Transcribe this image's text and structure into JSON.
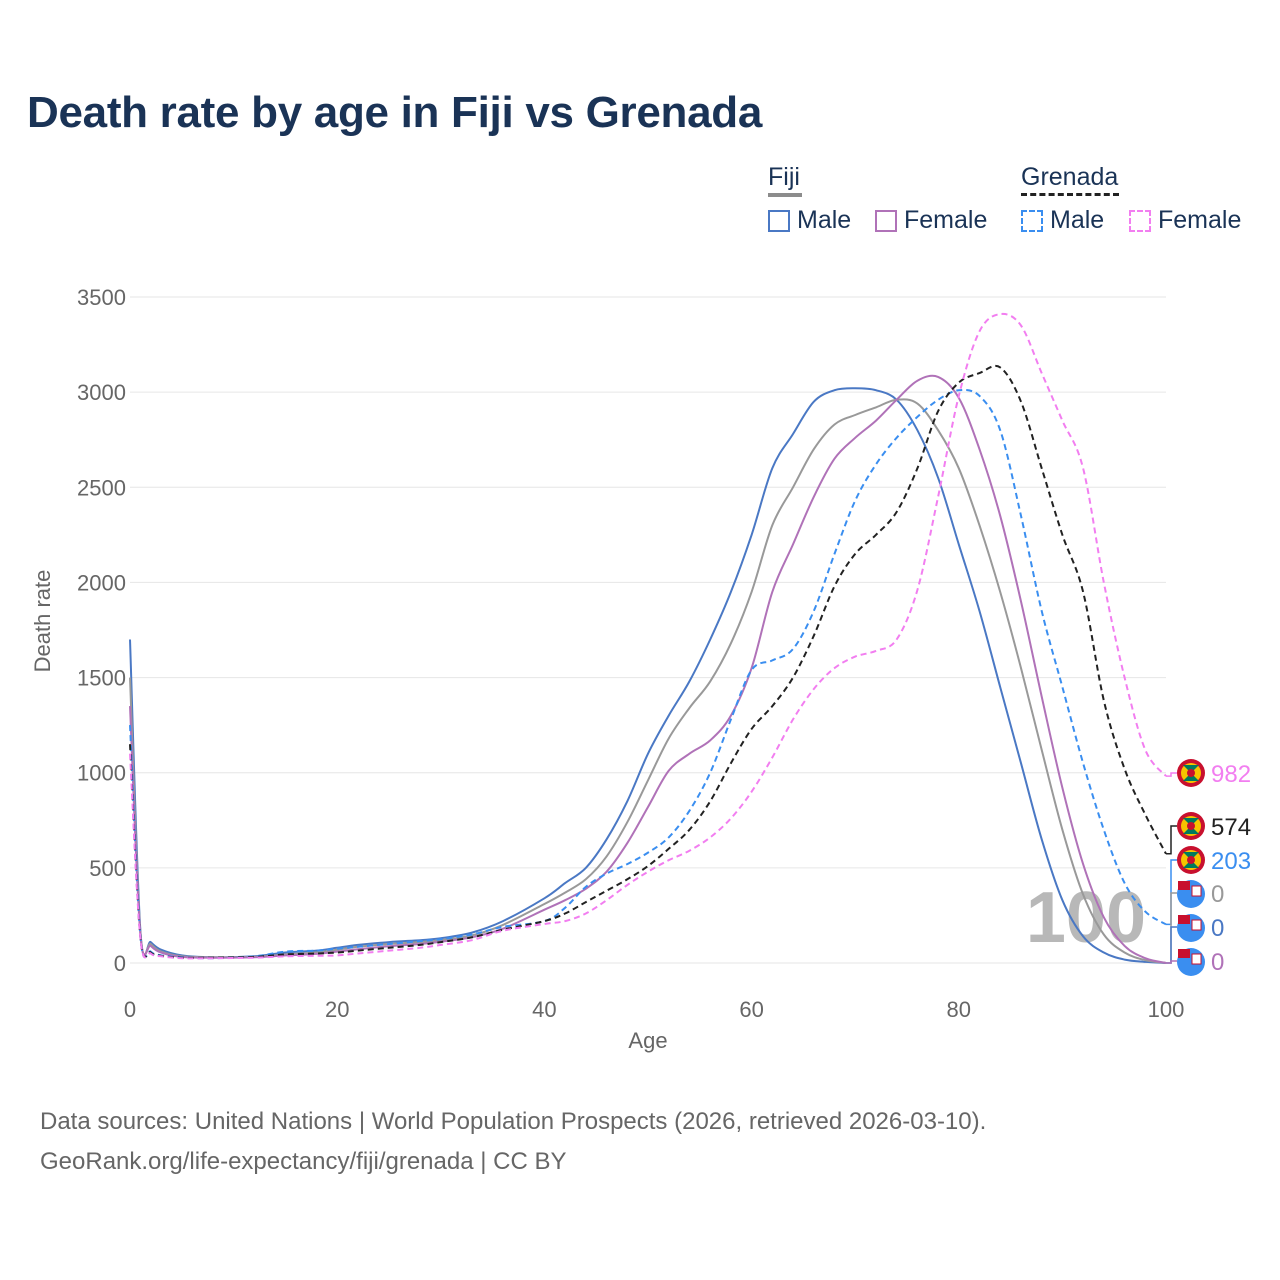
{
  "title": "Death rate by age in Fiji vs Grenada",
  "legend": {
    "groups": [
      {
        "name": "Fiji",
        "line_color": "#8c8c8c",
        "line_style": "solid"
      },
      {
        "name": "Grenada",
        "line_color": "#222222",
        "line_style": "dashed"
      }
    ],
    "items": [
      {
        "label": "Male",
        "color": "#4a78c4",
        "style": "solid"
      },
      {
        "label": "Female",
        "color": "#b072b8",
        "style": "solid"
      },
      {
        "label": "Male",
        "color": "#3a8ef0",
        "style": "dashed"
      },
      {
        "label": "Female",
        "color": "#f27ef0",
        "style": "dashed"
      }
    ]
  },
  "watermark": "100",
  "source": {
    "line1": "Data sources: United Nations | World Population Prospects (2026, retrieved 2026-03-10).",
    "line2": "GeoRank.org/life-expectancy/fiji/grenada | CC BY"
  },
  "chart_data": {
    "type": "line",
    "xlabel": "Age",
    "ylabel": "Death rate",
    "xlim": [
      0,
      100
    ],
    "ylim": [
      0,
      3500
    ],
    "xticks": [
      0,
      20,
      40,
      60,
      80,
      100
    ],
    "yticks": [
      0,
      500,
      1000,
      1500,
      2000,
      2500,
      3000,
      3500
    ],
    "grid": true,
    "series": [
      {
        "name": "Fiji Male",
        "color": "#4a78c4",
        "dash": false,
        "x": [
          0,
          1,
          2,
          3,
          5,
          8,
          12,
          15,
          18,
          20,
          22,
          25,
          28,
          30,
          33,
          36,
          40,
          42,
          44,
          46,
          48,
          50,
          52,
          54,
          56,
          58,
          60,
          62,
          64,
          66,
          68,
          70,
          72,
          74,
          76,
          78,
          80,
          82,
          84,
          86,
          88,
          90,
          92,
          94,
          96,
          98,
          100
        ],
        "y": [
          1700,
          170,
          110,
          70,
          40,
          30,
          35,
          55,
          65,
          80,
          95,
          110,
          120,
          130,
          160,
          220,
          340,
          420,
          500,
          650,
          850,
          1100,
          1300,
          1480,
          1700,
          1950,
          2250,
          2600,
          2780,
          2950,
          3010,
          3020,
          3010,
          2960,
          2800,
          2550,
          2200,
          1850,
          1450,
          1050,
          650,
          330,
          140,
          55,
          18,
          6,
          0
        ],
        "end_label": "0"
      },
      {
        "name": "Fiji Male+Female",
        "color": "#999999",
        "dash": false,
        "x": [
          0,
          1,
          2,
          3,
          5,
          8,
          12,
          15,
          18,
          20,
          22,
          25,
          28,
          30,
          33,
          36,
          40,
          42,
          44,
          46,
          48,
          50,
          52,
          54,
          56,
          58,
          60,
          62,
          64,
          66,
          68,
          70,
          72,
          74,
          76,
          78,
          80,
          82,
          84,
          86,
          88,
          90,
          92,
          94,
          96,
          98,
          100
        ],
        "y": [
          1500,
          160,
          100,
          60,
          35,
          30,
          32,
          45,
          55,
          70,
          85,
          100,
          110,
          120,
          145,
          200,
          310,
          370,
          440,
          560,
          740,
          960,
          1180,
          1340,
          1480,
          1680,
          1950,
          2300,
          2500,
          2700,
          2830,
          2880,
          2920,
          2960,
          2940,
          2800,
          2600,
          2300,
          1950,
          1550,
          1120,
          700,
          360,
          150,
          55,
          15,
          0
        ],
        "end_label": "0"
      },
      {
        "name": "Fiji Female",
        "color": "#b072b8",
        "dash": false,
        "x": [
          0,
          1,
          2,
          3,
          5,
          8,
          12,
          15,
          18,
          20,
          22,
          25,
          28,
          30,
          33,
          36,
          40,
          42,
          44,
          46,
          48,
          50,
          52,
          54,
          56,
          58,
          60,
          62,
          64,
          66,
          68,
          70,
          72,
          74,
          76,
          78,
          80,
          82,
          84,
          86,
          88,
          90,
          92,
          94,
          96,
          98,
          100
        ],
        "y": [
          1350,
          150,
          90,
          55,
          32,
          28,
          30,
          40,
          48,
          60,
          72,
          88,
          100,
          112,
          135,
          180,
          280,
          330,
          390,
          480,
          630,
          820,
          1010,
          1100,
          1170,
          1300,
          1550,
          1950,
          2200,
          2450,
          2650,
          2760,
          2850,
          2960,
          3060,
          3080,
          2970,
          2700,
          2350,
          1900,
          1400,
          920,
          520,
          240,
          90,
          25,
          0
        ],
        "end_label": "0"
      },
      {
        "name": "Grenada Male",
        "color": "#3a8ef0",
        "dash": true,
        "x": [
          0,
          1,
          2,
          3,
          5,
          8,
          12,
          15,
          18,
          20,
          22,
          25,
          28,
          30,
          33,
          36,
          40,
          42,
          44,
          46,
          48,
          50,
          52,
          54,
          56,
          58,
          60,
          62,
          64,
          66,
          68,
          70,
          72,
          74,
          76,
          78,
          80,
          82,
          84,
          86,
          88,
          90,
          92,
          94,
          96,
          98,
          100
        ],
        "y": [
          1250,
          140,
          60,
          40,
          30,
          25,
          35,
          60,
          65,
          75,
          85,
          100,
          115,
          125,
          150,
          190,
          220,
          290,
          400,
          470,
          520,
          580,
          660,
          800,
          1000,
          1280,
          1540,
          1590,
          1650,
          1850,
          2150,
          2430,
          2620,
          2760,
          2870,
          2960,
          3010,
          2980,
          2800,
          2350,
          1850,
          1450,
          1050,
          700,
          420,
          270,
          203
        ],
        "end_label": "203"
      },
      {
        "name": "Grenada Male+Female",
        "color": "#222222",
        "dash": true,
        "x": [
          0,
          1,
          2,
          3,
          5,
          8,
          12,
          15,
          18,
          20,
          22,
          25,
          28,
          30,
          33,
          36,
          40,
          42,
          44,
          46,
          48,
          50,
          52,
          54,
          56,
          58,
          60,
          62,
          64,
          66,
          68,
          70,
          72,
          74,
          76,
          78,
          80,
          82,
          84,
          86,
          88,
          90,
          92,
          94,
          96,
          98,
          100
        ],
        "y": [
          1150,
          135,
          55,
          38,
          28,
          28,
          32,
          45,
          50,
          55,
          65,
          80,
          95,
          110,
          135,
          175,
          220,
          260,
          320,
          380,
          440,
          510,
          600,
          700,
          850,
          1050,
          1230,
          1350,
          1500,
          1720,
          1980,
          2150,
          2250,
          2370,
          2600,
          2900,
          3050,
          3100,
          3130,
          2950,
          2600,
          2250,
          1950,
          1380,
          1020,
          780,
          574
        ],
        "end_label": "574"
      },
      {
        "name": "Grenada Female",
        "color": "#f27ef0",
        "dash": true,
        "x": [
          0,
          1,
          2,
          3,
          5,
          8,
          12,
          15,
          18,
          20,
          22,
          25,
          28,
          30,
          33,
          36,
          40,
          42,
          44,
          46,
          48,
          50,
          52,
          54,
          56,
          58,
          60,
          62,
          64,
          66,
          68,
          70,
          72,
          74,
          76,
          78,
          80,
          82,
          84,
          86,
          88,
          90,
          92,
          94,
          96,
          98,
          100
        ],
        "y": [
          1100,
          130,
          50,
          35,
          25,
          25,
          28,
          35,
          38,
          40,
          50,
          65,
          80,
          95,
          120,
          170,
          205,
          220,
          260,
          330,
          410,
          480,
          540,
          590,
          660,
          760,
          900,
          1080,
          1280,
          1440,
          1550,
          1610,
          1640,
          1700,
          1960,
          2450,
          2980,
          3320,
          3410,
          3350,
          3100,
          2850,
          2600,
          2000,
          1500,
          1120,
          982
        ],
        "end_label": "982"
      }
    ]
  }
}
